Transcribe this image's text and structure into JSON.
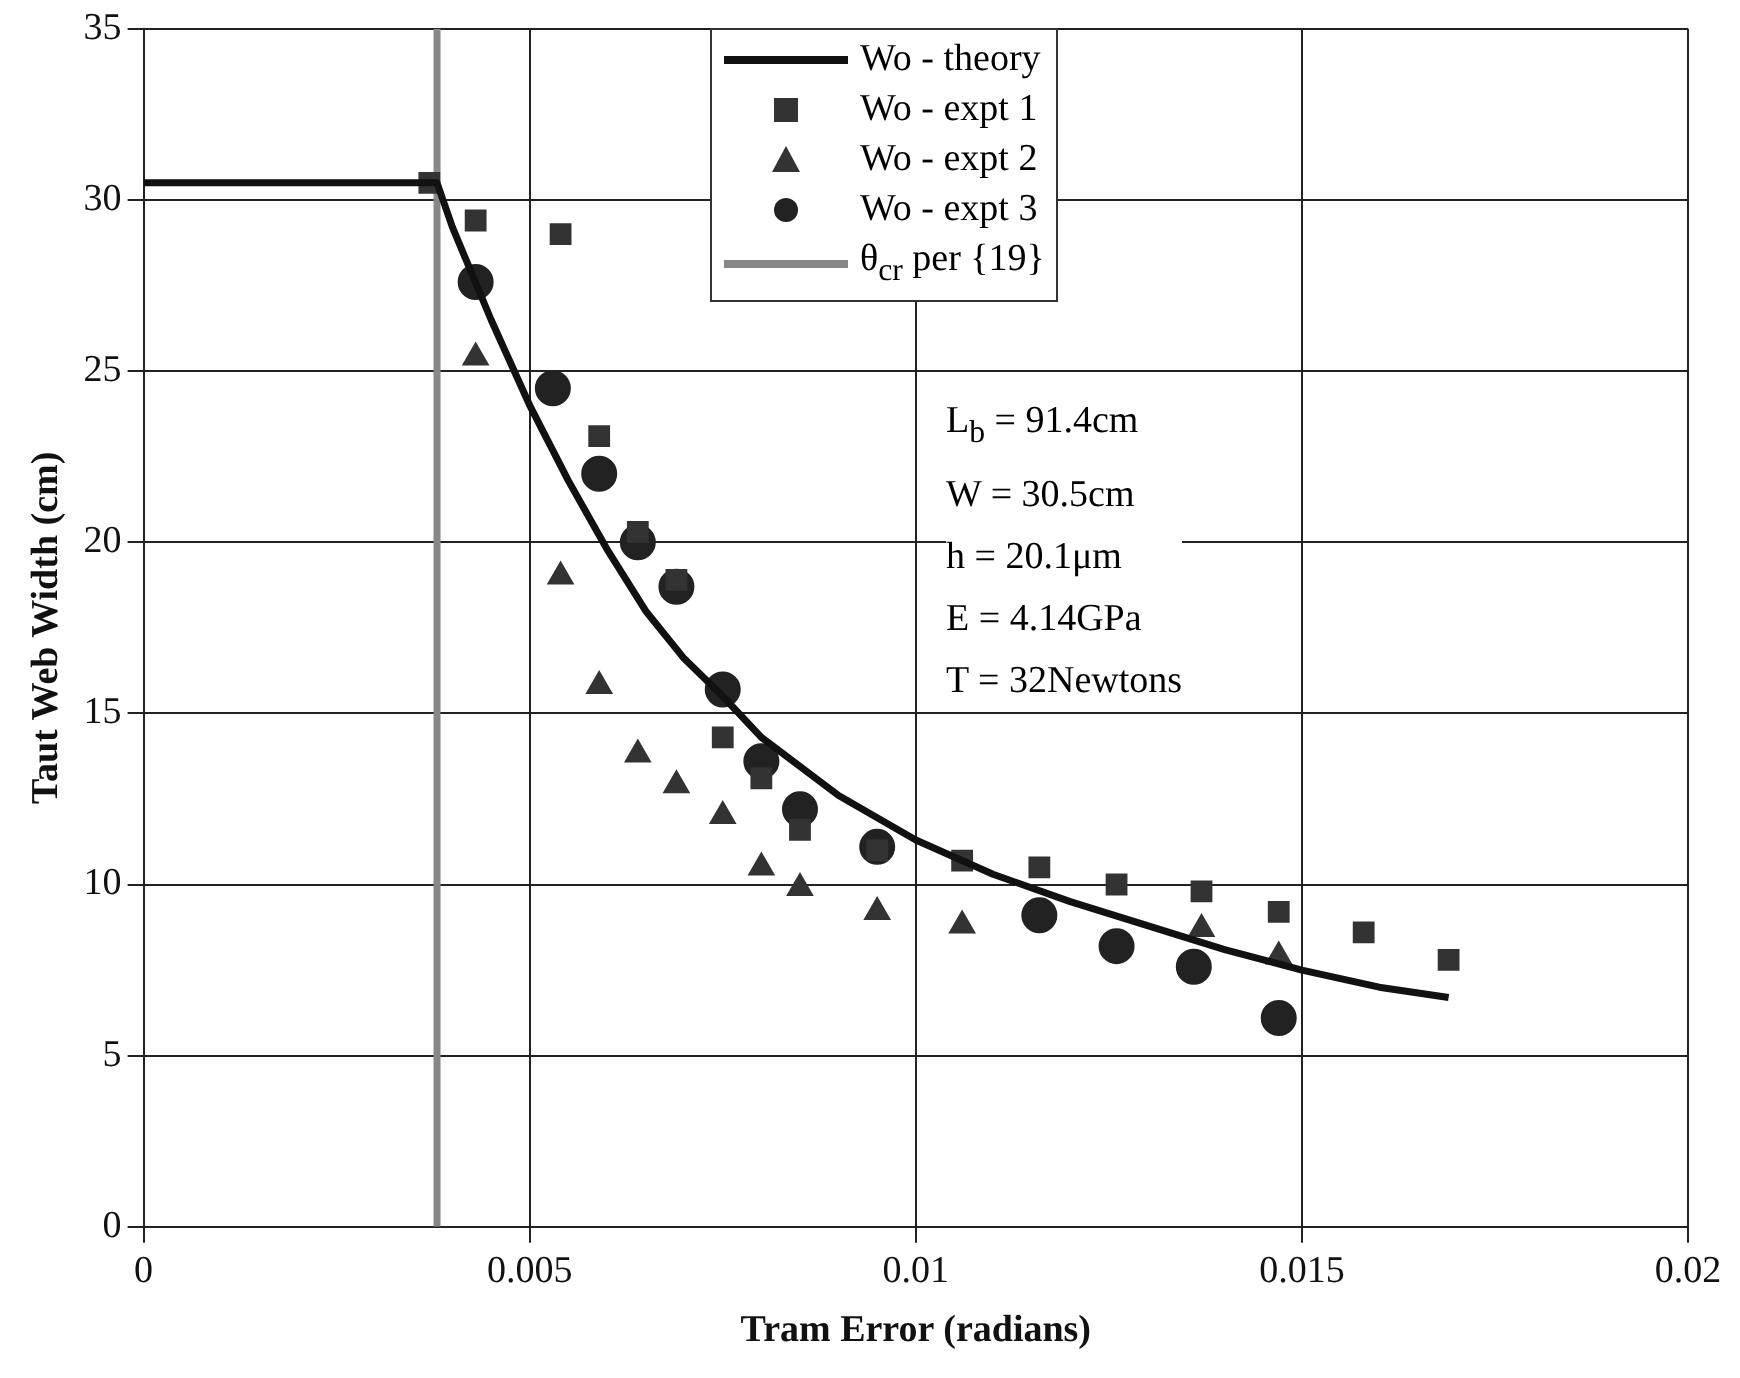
{
  "chart_data": {
    "type": "scatter",
    "xlabel": "Tram Error (radians)",
    "ylabel": "Taut Web Width (cm)",
    "xlim": [
      0,
      0.02
    ],
    "xticks": [
      0,
      0.005,
      0.01,
      0.015,
      0.02
    ],
    "ylim": [
      0,
      35
    ],
    "yticks": [
      0,
      5,
      10,
      15,
      20,
      25,
      30,
      35
    ],
    "grid": true,
    "legend": "top",
    "series": [
      {
        "name": "Wo - theory",
        "type": "line",
        "marker": "none",
        "line_style": "solid",
        "color": "#111111",
        "x": [
          0,
          0.0038,
          0.004,
          0.0045,
          0.005,
          0.0055,
          0.006,
          0.0065,
          0.007,
          0.0075,
          0.008,
          0.009,
          0.01,
          0.011,
          0.012,
          0.013,
          0.014,
          0.015,
          0.016,
          0.0169
        ],
        "values": [
          30.5,
          30.5,
          29.2,
          26.5,
          24,
          21.8,
          19.8,
          18,
          16.6,
          15.5,
          14.3,
          12.6,
          11.3,
          10.3,
          9.5,
          8.8,
          8.1,
          7.5,
          7,
          6.7
        ]
      },
      {
        "name": "Wo - expt 1",
        "marker": "square",
        "color": "#333333",
        "x": [
          0.0037,
          0.0043,
          0.0054,
          0.0059,
          0.0064,
          0.0069,
          0.0075,
          0.008,
          0.0085,
          0.0095,
          0.0106,
          0.0116,
          0.0126,
          0.0137,
          0.0147,
          0.0158,
          0.0169
        ],
        "values": [
          30.5,
          29.4,
          29,
          23.1,
          20.3,
          18.9,
          14.3,
          13.1,
          11.6,
          11,
          10.7,
          10.5,
          10,
          9.8,
          9.2,
          8.6,
          7.8
        ]
      },
      {
        "name": "Wo - expt 2",
        "marker": "triangle",
        "color": "#333333",
        "x": [
          0.0043,
          0.0054,
          0.0059,
          0.0064,
          0.0069,
          0.0075,
          0.008,
          0.0085,
          0.0095,
          0.0106,
          0.0137,
          0.0147
        ],
        "values": [
          25.4,
          19,
          15.8,
          13.8,
          12.9,
          12,
          10.5,
          9.9,
          9.2,
          8.8,
          8.7,
          7.9
        ]
      },
      {
        "name": "Wo - expt 3",
        "marker": "circle",
        "color": "#222222",
        "x": [
          0.0043,
          0.0053,
          0.0059,
          0.0064,
          0.0069,
          0.0075,
          0.008,
          0.0085,
          0.0095,
          0.0116,
          0.0126,
          0.0136,
          0.0147
        ],
        "values": [
          27.6,
          24.5,
          22,
          20,
          18.7,
          15.7,
          13.6,
          12.2,
          11.1,
          9.1,
          8.2,
          7.6,
          6.1
        ]
      },
      {
        "name": "θ$_{cr}$ per {19}",
        "type": "line",
        "marker": "none",
        "line_style": "solid",
        "color": "#888888",
        "x": [
          0.0038,
          0.0038
        ],
        "values": [
          0,
          35
        ]
      }
    ],
    "annotations": [
      "L$_{b}$ = 91.4cm",
      "W = 30.5cm",
      "h = 20.1μm",
      "E = 4.14GPa",
      "T = 32Newtons"
    ]
  }
}
